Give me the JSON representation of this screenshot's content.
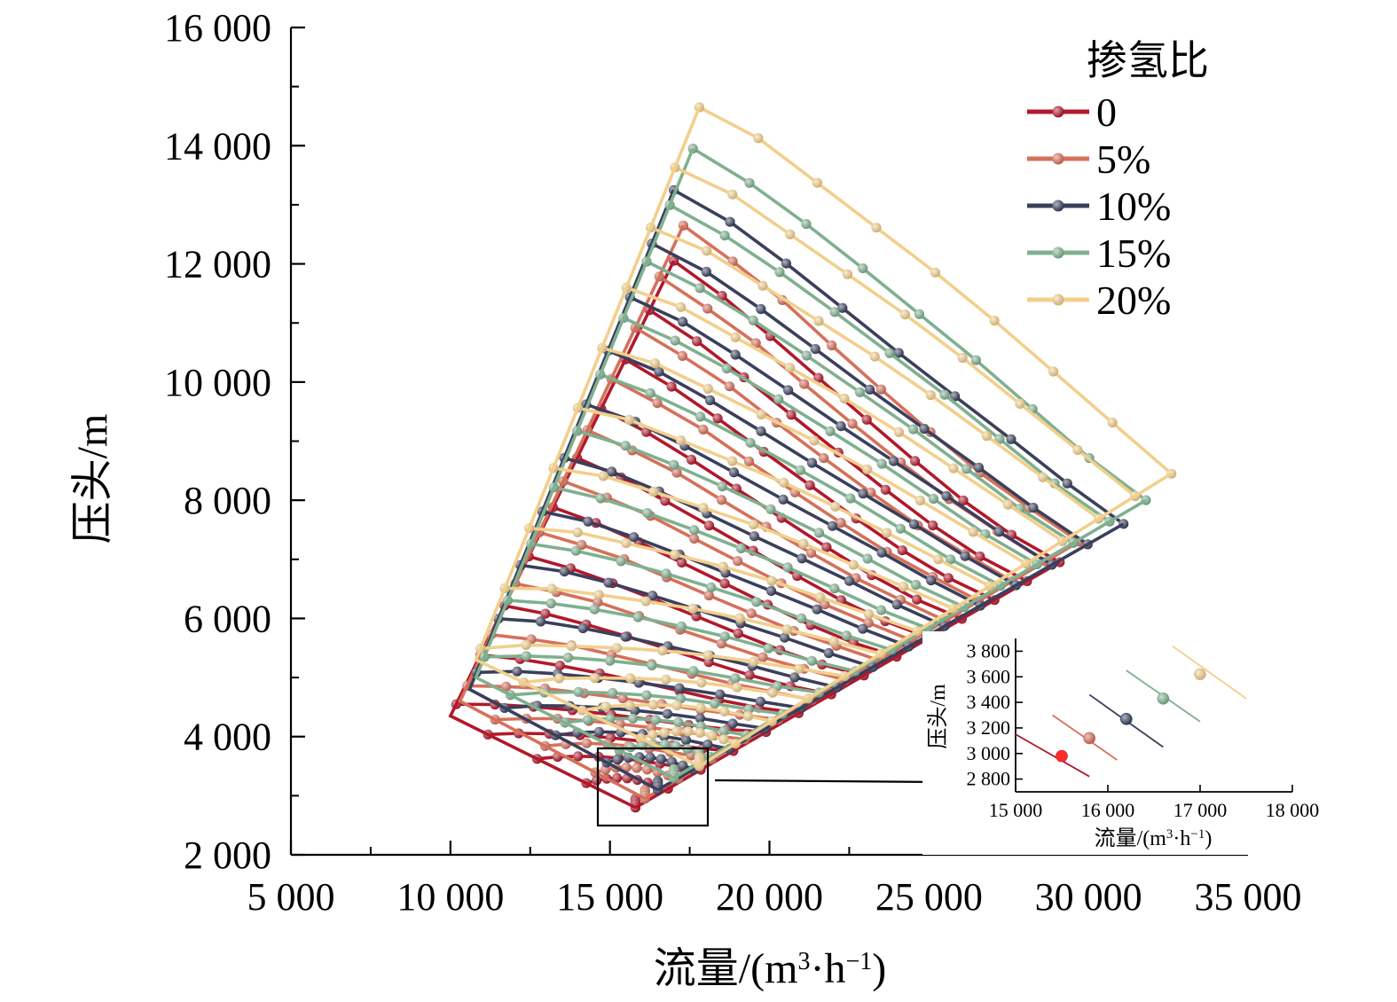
{
  "chart_data": {
    "type": "line",
    "title": "",
    "xlabel": "流量/(m³·h⁻¹)",
    "xlabel_parts": [
      "流量/(m",
      "3",
      "·h",
      "−1",
      ")"
    ],
    "ylabel": "压头/m",
    "xlim": [
      5000,
      35000
    ],
    "ylim": [
      2000,
      16000
    ],
    "x_ticks": [
      5000,
      10000,
      15000,
      20000,
      25000,
      30000,
      35000
    ],
    "x_tick_labels": [
      "5 000",
      "10 000",
      "15 000",
      "20 000",
      "25 000",
      "30 000",
      "35 000"
    ],
    "y_ticks": [
      2000,
      4000,
      6000,
      8000,
      10000,
      12000,
      14000,
      16000
    ],
    "y_tick_labels": [
      "2 000",
      "4 000",
      "6 000",
      "8 000",
      "10 000",
      "12 000",
      "14 000",
      "16 000"
    ],
    "grid": false,
    "legend": {
      "title": "掺氢比",
      "position": "top-right",
      "entries": [
        "0",
        "5%",
        "10%",
        "15%",
        "20%"
      ]
    },
    "series": [
      {
        "name": "0",
        "color": "#b2182b",
        "surge": [
          [
            10000,
            4350
          ],
          [
            15800,
            2800
          ]
        ],
        "choke": [
          [
            15800,
            2800
          ],
          [
            29100,
            6950
          ]
        ],
        "curves": 14,
        "top_curve": [
          [
            17000,
            12050
          ],
          [
            18500,
            11500
          ],
          [
            20000,
            10800
          ],
          [
            22000,
            9800
          ],
          [
            24000,
            8800
          ],
          [
            26000,
            7900
          ],
          [
            28000,
            7200
          ],
          [
            29100,
            6950
          ]
        ]
      },
      {
        "name": "5%",
        "color": "#d6705a",
        "surge": [
          [
            10300,
            4600
          ],
          [
            16100,
            2950
          ]
        ],
        "choke": [
          [
            16100,
            2950
          ],
          [
            29700,
            7300
          ]
        ],
        "curves": 14,
        "top_curve": [
          [
            17300,
            12650
          ],
          [
            18800,
            12100
          ],
          [
            20500,
            11400
          ],
          [
            22500,
            10300
          ],
          [
            24500,
            9300
          ],
          [
            26500,
            8400
          ],
          [
            28500,
            7700
          ],
          [
            29700,
            7300
          ]
        ]
      },
      {
        "name": "10%",
        "color": "#3a3f5c",
        "surge": [
          [
            10600,
            4800
          ],
          [
            16500,
            3100
          ]
        ],
        "choke": [
          [
            16500,
            3100
          ],
          [
            31100,
            7600
          ]
        ],
        "curves": 14,
        "top_curve": [
          [
            17000,
            13250
          ],
          [
            19000,
            12700
          ],
          [
            21000,
            11900
          ],
          [
            23000,
            11000
          ],
          [
            25000,
            10100
          ],
          [
            27000,
            9300
          ],
          [
            29000,
            8400
          ],
          [
            31100,
            7600
          ]
        ]
      },
      {
        "name": "15%",
        "color": "#7fb08f",
        "surge": [
          [
            10800,
            5000
          ],
          [
            17000,
            3300
          ]
        ],
        "choke": [
          [
            17000,
            3300
          ],
          [
            31800,
            8000
          ]
        ],
        "curves": 14,
        "top_curve": [
          [
            17600,
            13950
          ],
          [
            19500,
            13400
          ],
          [
            21500,
            12650
          ],
          [
            23500,
            11800
          ],
          [
            25500,
            10900
          ],
          [
            27500,
            10000
          ],
          [
            29500,
            8900
          ],
          [
            31800,
            8000
          ]
        ]
      },
      {
        "name": "20%",
        "color": "#f2cf8c",
        "surge": [
          [
            10800,
            5300
          ],
          [
            17800,
            3500
          ]
        ],
        "choke": [
          [
            17800,
            3500
          ],
          [
            32600,
            8450
          ]
        ],
        "curves": 14,
        "top_curve": [
          [
            17800,
            14650
          ],
          [
            19500,
            14300
          ],
          [
            21500,
            13500
          ],
          [
            23500,
            12700
          ],
          [
            25500,
            11900
          ],
          [
            27500,
            11000
          ],
          [
            29500,
            10000
          ],
          [
            32600,
            8450
          ]
        ]
      }
    ],
    "inset": {
      "xlabel": "流量/(m³·h⁻¹)",
      "xlabel_parts": [
        "流量/(m",
        "3",
        "·h",
        "−1",
        ")"
      ],
      "ylabel": "压头/m",
      "xlim": [
        15000,
        18000
      ],
      "ylim": [
        2700,
        3900
      ],
      "x_ticks": [
        15000,
        16000,
        17000,
        18000
      ],
      "x_tick_labels": [
        "15 000",
        "16 000",
        "17 000",
        "18 000"
      ],
      "y_ticks": [
        2800,
        3000,
        3200,
        3400,
        3600,
        3800
      ],
      "y_tick_labels": [
        "2 800",
        "3 000",
        "3 200",
        "3 400",
        "3 600",
        "3 800"
      ],
      "segments": [
        {
          "series": "0",
          "start": [
            15000,
            3150
          ],
          "end": [
            15800,
            2820
          ],
          "point": [
            15500,
            2980
          ]
        },
        {
          "series": "5%",
          "start": [
            15400,
            3300
          ],
          "end": [
            16100,
            2950
          ],
          "point": [
            15800,
            3120
          ]
        },
        {
          "series": "10%",
          "start": [
            15800,
            3460
          ],
          "end": [
            16600,
            3050
          ],
          "point": [
            16200,
            3270
          ]
        },
        {
          "series": "15%",
          "start": [
            16200,
            3650
          ],
          "end": [
            17000,
            3250
          ],
          "point": [
            16600,
            3430
          ]
        },
        {
          "series": "20%",
          "start": [
            16700,
            3840
          ],
          "end": [
            17500,
            3430
          ],
          "point": [
            17000,
            3620
          ]
        }
      ]
    }
  }
}
